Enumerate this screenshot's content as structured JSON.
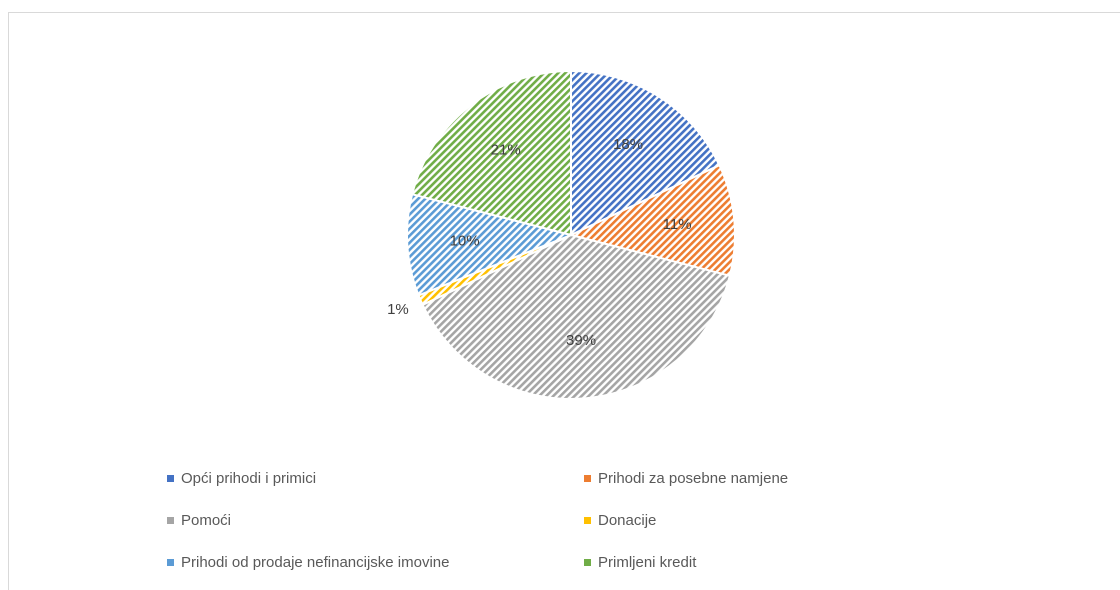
{
  "chart_data": {
    "type": "pie",
    "categories": [
      "Opći prihodi i primici",
      "Prihodi za posebne namjene",
      "Pomoći",
      "Donacije",
      "Prihodi od prodaje nefinancijske imovine",
      "Primljeni kredit"
    ],
    "values": [
      18,
      11,
      39,
      1,
      10,
      21
    ],
    "value_labels": [
      "18%",
      "11%",
      "39%",
      "1%",
      "10%",
      "21%"
    ],
    "colors": [
      "#4472c4",
      "#ed7d31",
      "#a5a5a5",
      "#ffc000",
      "#5b9bd5",
      "#70ad47"
    ]
  }
}
